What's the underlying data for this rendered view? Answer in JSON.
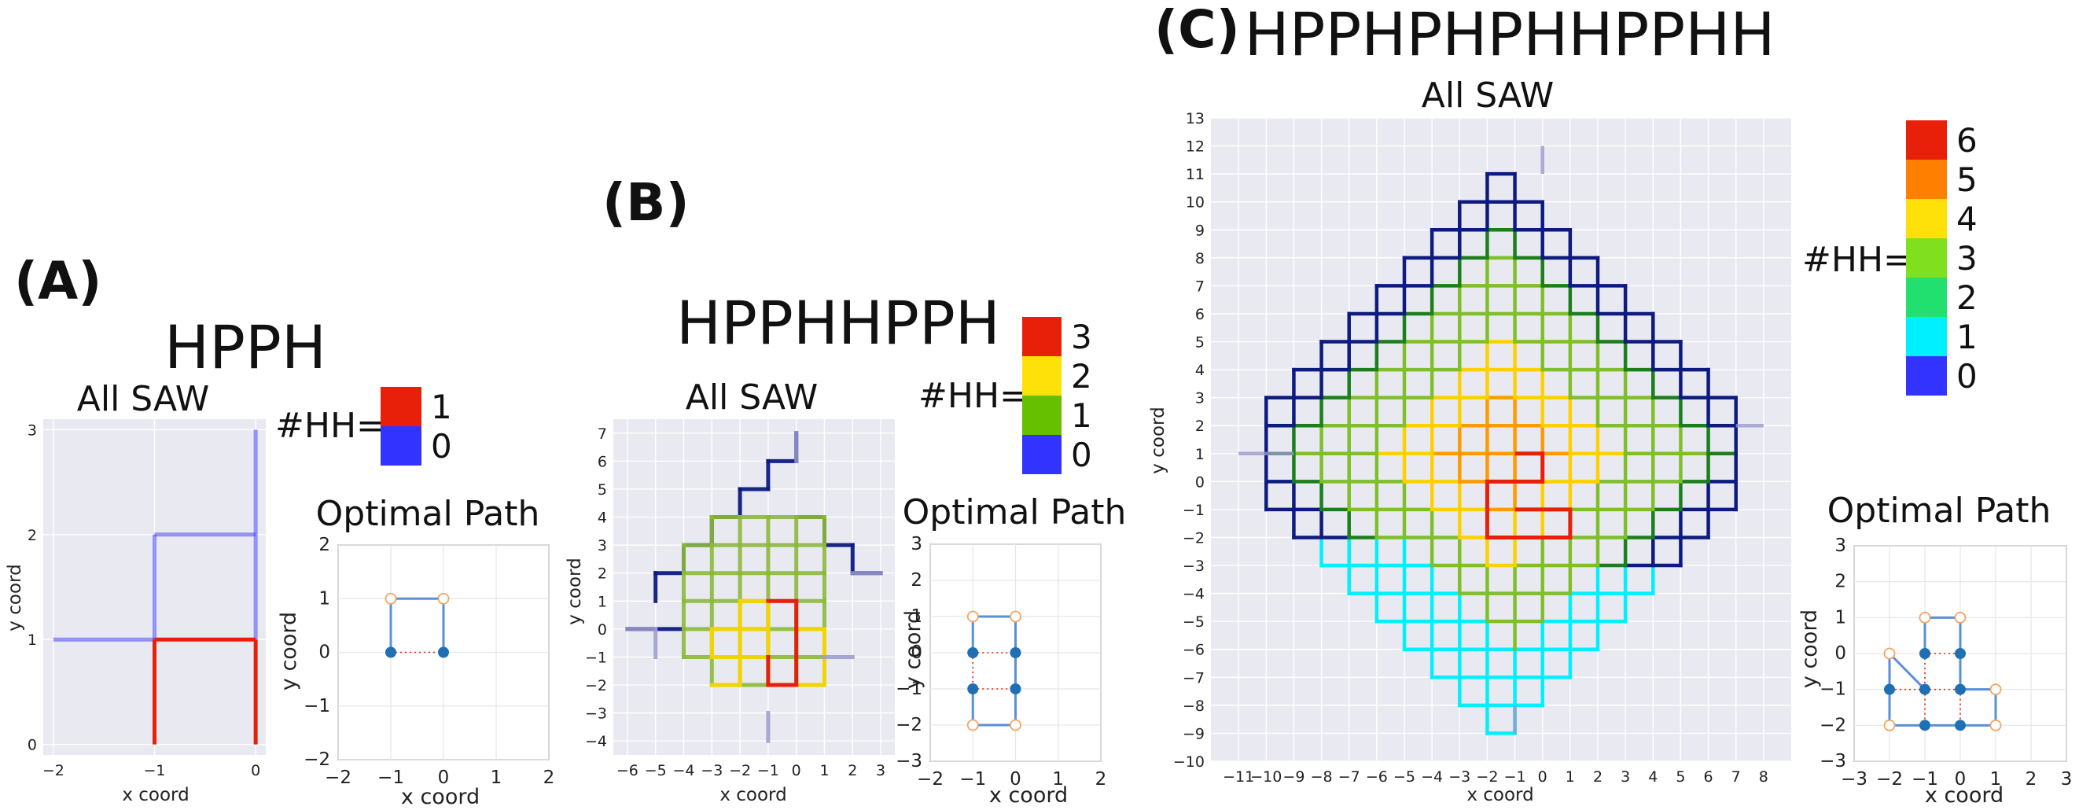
{
  "chart_data": [
    {
      "type": "lattice_path_plot",
      "panel": "(A)",
      "sequence": "HPPH",
      "title": "All SAW",
      "xlabel": "x coord",
      "ylabel": "y coord",
      "xlim": [
        -2.1,
        0.1
      ],
      "ylim": [
        -0.1,
        3.1
      ],
      "xticks": [
        -2,
        -1,
        0
      ],
      "yticks": [
        0,
        1,
        2,
        3
      ],
      "colorbar": {
        "title": "#HH=",
        "levels": [
          {
            "value": "1",
            "color": "#e8200a"
          },
          {
            "value": "0",
            "color": "#3333ff"
          }
        ]
      },
      "edges": [
        {
          "x": [
            -2,
            -1
          ],
          "y": [
            1,
            1
          ],
          "level": 0,
          "alpha": 0.5
        },
        {
          "x": [
            -1,
            -1
          ],
          "y": [
            1,
            2
          ],
          "level": 0,
          "alpha": 0.5
        },
        {
          "x": [
            -1,
            0
          ],
          "y": [
            2,
            2
          ],
          "level": 0,
          "alpha": 0.5
        },
        {
          "x": [
            0,
            0
          ],
          "y": [
            1,
            3
          ],
          "level": 0,
          "alpha": 0.5
        },
        {
          "x": [
            -1,
            0
          ],
          "y": [
            1,
            1
          ],
          "level": 1,
          "alpha": 1
        },
        {
          "x": [
            -1,
            -1
          ],
          "y": [
            0,
            1
          ],
          "level": 1,
          "alpha": 1
        },
        {
          "x": [
            0,
            0
          ],
          "y": [
            0,
            1
          ],
          "level": 1,
          "alpha": 1
        }
      ],
      "optimal_path": {
        "title": "Optimal Path",
        "xlabel": "x coord",
        "ylabel": "y coord",
        "xlim": [
          -2,
          2
        ],
        "ylim": [
          -2,
          2
        ],
        "xticks": [
          -2,
          -1,
          0,
          1,
          2
        ],
        "yticks": [
          -2,
          -1,
          0,
          1,
          2
        ],
        "path": [
          [
            -1,
            0
          ],
          [
            -1,
            1
          ],
          [
            0,
            1
          ],
          [
            0,
            0
          ]
        ],
        "h_points": [
          [
            -1,
            0
          ],
          [
            0,
            0
          ]
        ],
        "p_points": [
          [
            -1,
            1
          ],
          [
            0,
            1
          ]
        ],
        "hh_contacts": [
          [
            [
              -1,
              0
            ],
            [
              0,
              0
            ]
          ]
        ]
      }
    },
    {
      "type": "lattice_path_plot",
      "panel": "(B)",
      "sequence": "HPPHHPPH",
      "title": "All SAW",
      "xlabel": "x coord",
      "ylabel": "y coord",
      "xlim": [
        -6.5,
        3.5
      ],
      "ylim": [
        -4.5,
        7.5
      ],
      "xticks": [
        -6,
        -5,
        -4,
        -3,
        -2,
        -1,
        0,
        1,
        2,
        3
      ],
      "yticks": [
        -4,
        -3,
        -2,
        -1,
        0,
        1,
        2,
        3,
        4,
        5,
        6,
        7
      ],
      "colorbar": {
        "title": "#HH=",
        "levels": [
          {
            "value": "3",
            "color": "#e8200a"
          },
          {
            "value": "2",
            "color": "#ffe10a"
          },
          {
            "value": "1",
            "color": "#66c000"
          },
          {
            "value": "0",
            "color": "#3333ff"
          }
        ]
      },
      "optimal_path": {
        "title": "Optimal Path",
        "xlabel": "x coord",
        "ylabel": "y coord",
        "xlim": [
          -2,
          2
        ],
        "ylim": [
          -3,
          3
        ],
        "xticks": [
          -2,
          -1,
          0,
          1,
          2
        ],
        "yticks": [
          -3,
          -2,
          -1,
          0,
          1,
          2,
          3
        ],
        "path": [
          [
            -1,
            0
          ],
          [
            -1,
            1
          ],
          [
            0,
            1
          ],
          [
            0,
            0
          ],
          [
            0,
            -1
          ],
          [
            0,
            -2
          ],
          [
            -1,
            -2
          ],
          [
            -1,
            -1
          ]
        ],
        "h_points": [
          [
            -1,
            0
          ],
          [
            0,
            0
          ],
          [
            0,
            -1
          ],
          [
            -1,
            -1
          ]
        ],
        "p_points": [
          [
            -1,
            1
          ],
          [
            0,
            1
          ],
          [
            0,
            -2
          ],
          [
            -1,
            -2
          ]
        ],
        "hh_contacts": [
          [
            [
              -1,
              0
            ],
            [
              0,
              0
            ]
          ],
          [
            [
              -1,
              -1
            ],
            [
              0,
              -1
            ]
          ],
          [
            [
              -1,
              0
            ],
            [
              -1,
              -1
            ]
          ]
        ]
      }
    },
    {
      "type": "lattice_path_plot",
      "panel": "(C)",
      "sequence": "HPPHPHPHHPPHH",
      "title": "All SAW",
      "xlabel": "x coord",
      "ylabel": "y coord",
      "xlim": [
        -12,
        9
      ],
      "ylim": [
        -10,
        13
      ],
      "xticks": [
        -11,
        -10,
        -9,
        -8,
        -7,
        -6,
        -5,
        -4,
        -3,
        -2,
        -1,
        0,
        1,
        2,
        3,
        4,
        5,
        6,
        7,
        8
      ],
      "yticks": [
        -10,
        -9,
        -8,
        -7,
        -6,
        -5,
        -4,
        -3,
        -2,
        -1,
        0,
        1,
        2,
        3,
        4,
        5,
        6,
        7,
        8,
        9,
        10,
        11,
        12,
        13
      ],
      "colorbar": {
        "title": "#HH=",
        "levels": [
          {
            "value": "6",
            "color": "#e8200a"
          },
          {
            "value": "5",
            "color": "#ff7f00"
          },
          {
            "value": "4",
            "color": "#ffe10a"
          },
          {
            "value": "3",
            "color": "#80e020"
          },
          {
            "value": "2",
            "color": "#22e070"
          },
          {
            "value": "1",
            "color": "#00f0ff"
          },
          {
            "value": "0",
            "color": "#3333ff"
          }
        ]
      },
      "optimal_path": {
        "title": "Optimal Path",
        "xlabel": "x coord",
        "ylabel": "y coord",
        "xlim": [
          -3,
          3
        ],
        "ylim": [
          -3,
          3
        ],
        "xticks": [
          -3,
          -2,
          -1,
          0,
          1,
          2,
          3
        ],
        "yticks": [
          -3,
          -2,
          -1,
          0,
          1,
          2,
          3
        ],
        "path": [
          [
            -1,
            0
          ],
          [
            -1,
            1
          ],
          [
            0,
            1
          ],
          [
            0,
            0
          ],
          [
            0,
            -1
          ],
          [
            1,
            -1
          ],
          [
            1,
            -2
          ],
          [
            0,
            -2
          ],
          [
            -1,
            -2
          ],
          [
            -2,
            -2
          ],
          [
            -2,
            -1
          ],
          [
            -2,
            0
          ],
          [
            -1,
            -1
          ]
        ],
        "h_points": [
          [
            -1,
            0
          ],
          [
            0,
            0
          ],
          [
            0,
            -1
          ],
          [
            0,
            -2
          ],
          [
            -1,
            -2
          ],
          [
            -2,
            -1
          ],
          [
            -1,
            -1
          ]
        ],
        "p_points": [
          [
            -1,
            1
          ],
          [
            0,
            1
          ],
          [
            1,
            -1
          ],
          [
            1,
            -2
          ],
          [
            -2,
            -2
          ],
          [
            -2,
            0
          ]
        ],
        "hh_contacts": [
          [
            [
              -1,
              0
            ],
            [
              0,
              0
            ]
          ],
          [
            [
              -1,
              -1
            ],
            [
              0,
              -1
            ]
          ],
          [
            [
              -1,
              -1
            ],
            [
              -2,
              -1
            ]
          ],
          [
            [
              -1,
              -1
            ],
            [
              -1,
              -2
            ]
          ],
          [
            [
              -1,
              0
            ],
            [
              -1,
              -1
            ]
          ],
          [
            [
              0,
              -1
            ],
            [
              0,
              -2
            ]
          ]
        ]
      }
    }
  ]
}
